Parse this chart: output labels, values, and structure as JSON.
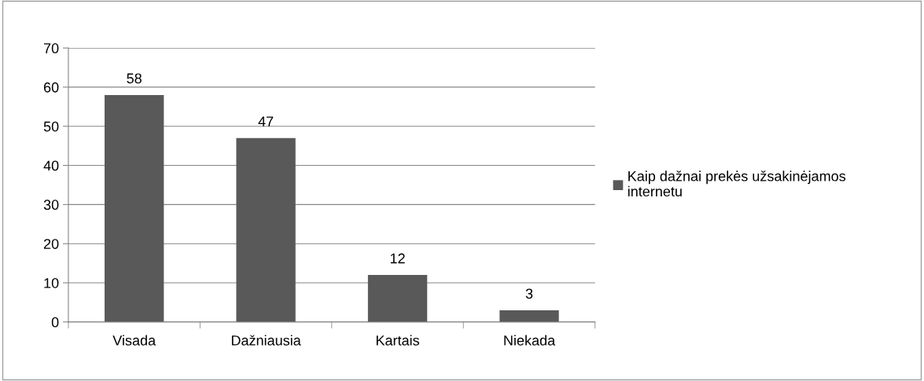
{
  "chart_data": {
    "type": "bar",
    "categories": [
      "Visada",
      "Dažniausia",
      "Kartais",
      "Niekada"
    ],
    "series": [
      {
        "name": "Kaip dažnai prekės užsakinėjamos internetu",
        "color": "#595959",
        "values": [
          58,
          47,
          12,
          3
        ]
      }
    ],
    "ylim": [
      0,
      70
    ],
    "yticks": [
      0,
      10,
      20,
      30,
      40,
      50,
      60,
      70
    ],
    "grid": "y",
    "legend": "right",
    "data_labels": true
  }
}
